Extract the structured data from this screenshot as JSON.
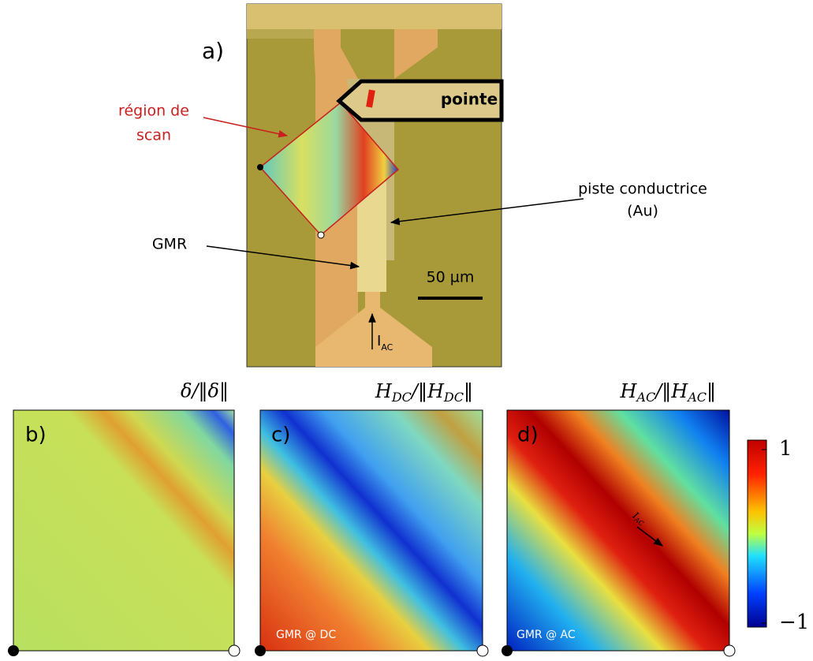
{
  "panel_a": {
    "label": "a)",
    "scan_region": [
      "région de",
      "scan"
    ],
    "tip": "pointe",
    "track": [
      "piste conductrice",
      "(Au)"
    ],
    "sensor": "GMR",
    "scale_bar": "50 µm",
    "current": [
      "I",
      "AC"
    ]
  },
  "panel_b": {
    "label": "b)",
    "title": [
      "δ/‖δ‖"
    ]
  },
  "panel_c": {
    "label": "c)",
    "title": [
      "H",
      "DC",
      "/‖H",
      "DC",
      "‖"
    ],
    "note": "GMR @ DC"
  },
  "panel_d": {
    "label": "d)",
    "title": [
      "H",
      "AC",
      "/‖H",
      "AC",
      "‖"
    ],
    "note": "GMR @ AC",
    "current": [
      "I",
      "AC"
    ]
  },
  "colorbar": {
    "ticks": [
      1,
      {
        "value": -1,
        "label": "−1"
      }
    ]
  }
}
